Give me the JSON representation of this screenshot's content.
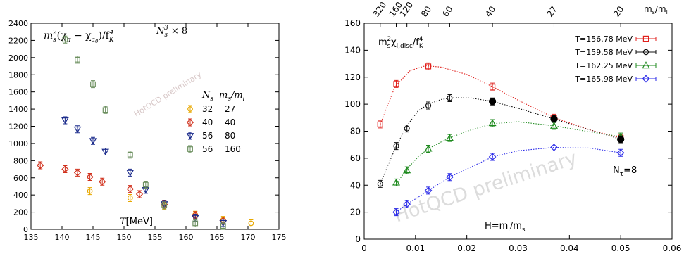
{
  "chart_data": [
    {
      "type": "scatter",
      "title": "m_s^2(χ_π − χ_a0)/f_K^4",
      "title_parts": {
        "main": "m",
        "sub1": "s",
        "sup1": "2",
        "paren": "(χ",
        "sub2": "π",
        "minus": " − χ",
        "sub3": "a",
        "sub3b": "0",
        "close": ")/f",
        "sub4": "K",
        "sup4": "4"
      },
      "subtitle_parts": {
        "main": "N",
        "sub": "s",
        "sup": "3",
        "rest": " × 8"
      },
      "xlabel": "T[MeV]",
      "xlabel_parts": {
        "var": "T",
        "unit": "[MeV]"
      },
      "ylabel": "",
      "xlim": [
        135,
        175
      ],
      "ylim": [
        0,
        2400
      ],
      "xticks": [
        "135",
        "140",
        "145",
        "150",
        "155",
        "160",
        "165",
        "170",
        "175"
      ],
      "yticks": [
        "0",
        "200",
        "400",
        "600",
        "800",
        "1000",
        "1200",
        "1400",
        "1600",
        "1800",
        "2000",
        "2200",
        "2400"
      ],
      "legend_placement": "right",
      "legend_header": {
        "col1": "N",
        "col1_sub": "s",
        "col2": "m",
        "col2_sub1": "s",
        "col2_slash": "/m",
        "col2_sub2": "l"
      },
      "watermark": "HotQCD preliminary",
      "series": [
        {
          "name": "32",
          "ratio": "27",
          "color": "#e8a800",
          "marker": "circle",
          "points": [
            [
              144.5,
              445
            ],
            [
              151,
              365
            ],
            [
              156.5,
              270
            ],
            [
              161.5,
              170
            ],
            [
              166,
              110
            ],
            [
              170.5,
              70
            ]
          ]
        },
        {
          "name": "40",
          "ratio": "40",
          "color": "#d0301c",
          "marker": "diamond",
          "points": [
            [
              136.5,
              745
            ],
            [
              140.5,
              700
            ],
            [
              142.5,
              660
            ],
            [
              144.5,
              610
            ],
            [
              146.5,
              555
            ],
            [
              151,
              470
            ],
            [
              152.5,
              410
            ],
            [
              156.5,
              290
            ],
            [
              161.5,
              165
            ],
            [
              166,
              100
            ]
          ]
        },
        {
          "name": "56",
          "ratio": "80",
          "color": "#1c2c8c",
          "marker": "triangle-down",
          "points": [
            [
              140.5,
              1270
            ],
            [
              142.5,
              1165
            ],
            [
              145,
              1030
            ],
            [
              147,
              905
            ],
            [
              151,
              660
            ],
            [
              153.5,
              460
            ],
            [
              156.5,
              295
            ],
            [
              161.5,
              135
            ],
            [
              166,
              75
            ]
          ]
        },
        {
          "name": "56",
          "ratio": "160",
          "color": "#6d9060",
          "marker": "square",
          "points": [
            [
              140.5,
              2210
            ],
            [
              142.5,
              1975
            ],
            [
              145,
              1690
            ],
            [
              147,
              1390
            ],
            [
              151,
              870
            ],
            [
              153.5,
              520
            ],
            [
              156.5,
              280
            ],
            [
              161.5,
              70
            ],
            [
              166,
              40
            ]
          ]
        }
      ]
    },
    {
      "type": "line",
      "title": "m_s^2 χ_l,disc/f_K^4",
      "title_parts": {
        "main": "m",
        "sub1": "s",
        "sup1": "2",
        "chi": "χ",
        "sub2": "l,disc",
        "slash": "/f",
        "sub3": "K",
        "sup3": "4"
      },
      "xlabel": "H=m_l/m_s",
      "xlabel_parts": {
        "a": "H=m",
        "sub1": "l",
        "b": "/m",
        "sub2": "s"
      },
      "ylabel": "",
      "xlim": [
        0,
        0.06
      ],
      "ylim": [
        0,
        160
      ],
      "xticks": [
        "0",
        "0.01",
        "0.02",
        "0.03",
        "0.04",
        "0.05",
        "0.06"
      ],
      "yticks": [
        "0",
        "20",
        "40",
        "60",
        "80",
        "100",
        "120",
        "140",
        "160"
      ],
      "top_axis_label": "m_s/m_l",
      "top_axis_label_parts": {
        "a": "m",
        "sub1": "s",
        "b": "/m",
        "sub2": "l"
      },
      "top_ticks": [
        {
          "label": "320",
          "x": 0.003125
        },
        {
          "label": "160",
          "x": 0.00625
        },
        {
          "label": "120",
          "x": 0.00833
        },
        {
          "label": "80",
          "x": 0.0125
        },
        {
          "label": "60",
          "x": 0.01667
        },
        {
          "label": "40",
          "x": 0.025
        },
        {
          "label": "27",
          "x": 0.037
        },
        {
          "label": "20",
          "x": 0.05
        }
      ],
      "annotation_parts": {
        "a": "N",
        "sub": "τ",
        "b": "=8"
      },
      "legend_placement": "top-right",
      "watermark": "HotQCD preliminary",
      "series": [
        {
          "name": "T=156.78 MeV",
          "color": "#e0201c",
          "marker": "square",
          "points": [
            [
              0.003125,
              85
            ],
            [
              0.00625,
              115
            ],
            [
              0.0125,
              128
            ],
            [
              0.025,
              113
            ],
            [
              0.037,
              90
            ],
            [
              0.05,
              75
            ]
          ],
          "curve": [
            [
              0.003125,
              85
            ],
            [
              0.006,
              113
            ],
            [
              0.009,
              125
            ],
            [
              0.012,
              128.5
            ],
            [
              0.015,
              127.5
            ],
            [
              0.02,
              122
            ],
            [
              0.025,
              113
            ],
            [
              0.03,
              103
            ],
            [
              0.037,
              90
            ],
            [
              0.044,
              81
            ],
            [
              0.05,
              75
            ]
          ]
        },
        {
          "name": "T=159.58 MeV",
          "color": "#101010",
          "marker": "circle",
          "points": [
            [
              0.003125,
              41
            ],
            [
              0.00625,
              69
            ],
            [
              0.00833,
              82
            ],
            [
              0.0125,
              99
            ],
            [
              0.01667,
              104.5
            ],
            [
              0.025,
              102
            ],
            [
              0.037,
              89
            ],
            [
              0.05,
              74
            ]
          ],
          "curve": [
            [
              0.003125,
              41
            ],
            [
              0.005,
              58
            ],
            [
              0.00625,
              69
            ],
            [
              0.00833,
              84
            ],
            [
              0.0105,
              95
            ],
            [
              0.0125,
              100
            ],
            [
              0.015,
              103.5
            ],
            [
              0.018,
              105
            ],
            [
              0.021,
              104.5
            ],
            [
              0.025,
              102
            ],
            [
              0.03,
              97
            ],
            [
              0.037,
              89
            ],
            [
              0.044,
              81
            ],
            [
              0.05,
              74
            ]
          ]
        },
        {
          "name": "T=162.25 MeV",
          "color": "#1e8a1e",
          "marker": "triangle-up",
          "points": [
            [
              0.00625,
              42
            ],
            [
              0.00833,
              51
            ],
            [
              0.0125,
              67
            ],
            [
              0.01667,
              75
            ],
            [
              0.025,
              86
            ],
            [
              0.037,
              84
            ],
            [
              0.05,
              76
            ]
          ],
          "curve": [
            [
              0.00625,
              41
            ],
            [
              0.00833,
              52
            ],
            [
              0.0105,
              61
            ],
            [
              0.0125,
              67
            ],
            [
              0.015,
              72
            ],
            [
              0.01667,
              75
            ],
            [
              0.02,
              80
            ],
            [
              0.025,
              85.5
            ],
            [
              0.03,
              87
            ],
            [
              0.037,
              84
            ],
            [
              0.044,
              79.5
            ],
            [
              0.05,
              76
            ]
          ]
        },
        {
          "name": "T=165.98 MeV",
          "color": "#2a2ae8",
          "marker": "diamond",
          "points": [
            [
              0.00625,
              20
            ],
            [
              0.00833,
              26
            ],
            [
              0.0125,
              36
            ],
            [
              0.01667,
              46
            ],
            [
              0.025,
              61
            ],
            [
              0.037,
              68
            ],
            [
              0.05,
              64
            ]
          ],
          "curve": [
            [
              0.00625,
              20
            ],
            [
              0.00833,
              26
            ],
            [
              0.0105,
              31
            ],
            [
              0.0125,
              36
            ],
            [
              0.015,
              42
            ],
            [
              0.01667,
              46
            ],
            [
              0.02,
              52
            ],
            [
              0.025,
              61
            ],
            [
              0.03,
              65.5
            ],
            [
              0.037,
              68
            ],
            [
              0.044,
              67.5
            ],
            [
              0.05,
              64
            ]
          ]
        }
      ],
      "highlighted_points": [
        [
          0.025,
          102
        ],
        [
          0.037,
          89
        ],
        [
          0.05,
          74
        ]
      ]
    }
  ]
}
